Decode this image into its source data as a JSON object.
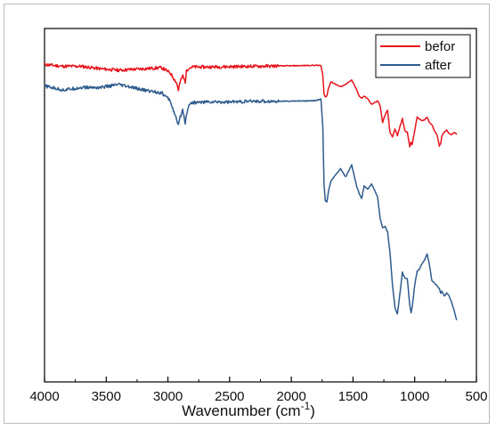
{
  "chart_data": {
    "type": "line",
    "title": "",
    "xlabel": "Wavenumber (cm",
    "xlabel_sup": "-1",
    "xlabel_close": ")",
    "ylabel": "",
    "xlim": [
      4000,
      500
    ],
    "ylim": [
      0,
      100
    ],
    "x_reversed": true,
    "grid": false,
    "legend_position": "top-right",
    "xticks": [
      "4000",
      "3500",
      "3000",
      "2500",
      "2000",
      "1500",
      "1000",
      "500"
    ],
    "x_tick_values": [
      4000,
      3500,
      3000,
      2500,
      2000,
      1500,
      1000,
      500
    ],
    "series": [
      {
        "name": "befor",
        "color": "#e8141c",
        "x": [
          4000,
          3850,
          3700,
          3550,
          3400,
          3200,
          3050,
          2980,
          2930,
          2915,
          2900,
          2880,
          2860,
          2850,
          2830,
          2800,
          2700,
          2500,
          2300,
          2100,
          1900,
          1800,
          1760,
          1745,
          1735,
          1725,
          1712,
          1700,
          1680,
          1650,
          1600,
          1560,
          1510,
          1470,
          1450,
          1430,
          1410,
          1380,
          1350,
          1300,
          1280,
          1260,
          1240,
          1220,
          1200,
          1180,
          1160,
          1140,
          1120,
          1100,
          1080,
          1060,
          1040,
          1030,
          1020,
          1000,
          980,
          960,
          940,
          920,
          900,
          880,
          860,
          840,
          820,
          800,
          790,
          780,
          760,
          740,
          720,
          700,
          680,
          660
        ],
        "y": [
          89.8,
          89.3,
          89.3,
          88.6,
          88.2,
          88.6,
          88.9,
          87.4,
          84.6,
          82.6,
          85.0,
          86.6,
          84.9,
          87.9,
          88.9,
          89.1,
          89.1,
          89.2,
          89.3,
          89.4,
          89.5,
          89.6,
          89.5,
          86.7,
          81.5,
          80.6,
          80.9,
          83.0,
          84.9,
          84.4,
          83.5,
          84.2,
          85.4,
          82.6,
          80.8,
          80.3,
          80.9,
          80.1,
          78.5,
          79.5,
          78.2,
          73.4,
          75.6,
          76.8,
          70.5,
          69.4,
          71.6,
          69.7,
          72.2,
          74.5,
          71.1,
          70.6,
          66.5,
          67.8,
          67.2,
          71.1,
          75.0,
          74.3,
          74.0,
          74.2,
          74.8,
          73.4,
          72.8,
          71.1,
          70.0,
          66.8,
          67.4,
          69.6,
          70.8,
          71.2,
          70.2,
          70.0,
          70.7,
          70.0
        ]
      },
      {
        "name": "after",
        "color": "#2e5b8d",
        "x": [
          4000,
          3850,
          3700,
          3550,
          3400,
          3200,
          3050,
          2980,
          2930,
          2915,
          2900,
          2880,
          2860,
          2850,
          2830,
          2800,
          2700,
          2500,
          2300,
          2100,
          1900,
          1800,
          1760,
          1745,
          1735,
          1725,
          1712,
          1700,
          1680,
          1650,
          1600,
          1560,
          1510,
          1470,
          1450,
          1430,
          1410,
          1380,
          1350,
          1300,
          1280,
          1260,
          1240,
          1220,
          1200,
          1180,
          1160,
          1140,
          1120,
          1100,
          1080,
          1060,
          1040,
          1030,
          1020,
          1000,
          980,
          960,
          940,
          920,
          900,
          880,
          860,
          840,
          820,
          800,
          790,
          780,
          760,
          740,
          720,
          700,
          680,
          660
        ],
        "y": [
          83.7,
          82.6,
          83.3,
          83.3,
          84.1,
          82.6,
          81.8,
          79.5,
          74.1,
          72.4,
          75.0,
          77.0,
          73.4,
          75.4,
          78.6,
          79.0,
          79.2,
          79.2,
          79.4,
          79.4,
          79.5,
          79.6,
          80.0,
          72.4,
          55.8,
          51.3,
          50.8,
          53.7,
          56.8,
          58.2,
          60.3,
          58.0,
          61.4,
          55.3,
          53.3,
          51.9,
          55.4,
          54.5,
          56.0,
          52.3,
          46.3,
          43.6,
          44.0,
          42.5,
          36.5,
          27.2,
          21.0,
          19.2,
          25.0,
          31.0,
          29.5,
          29.3,
          21.6,
          19.6,
          21.2,
          27.3,
          31.4,
          32.0,
          33.5,
          34.5,
          36.2,
          33.0,
          28.5,
          28.0,
          27.2,
          26.4,
          25.1,
          25.6,
          24.3,
          25.2,
          24.2,
          22.4,
          20.1,
          17.5
        ]
      }
    ]
  }
}
